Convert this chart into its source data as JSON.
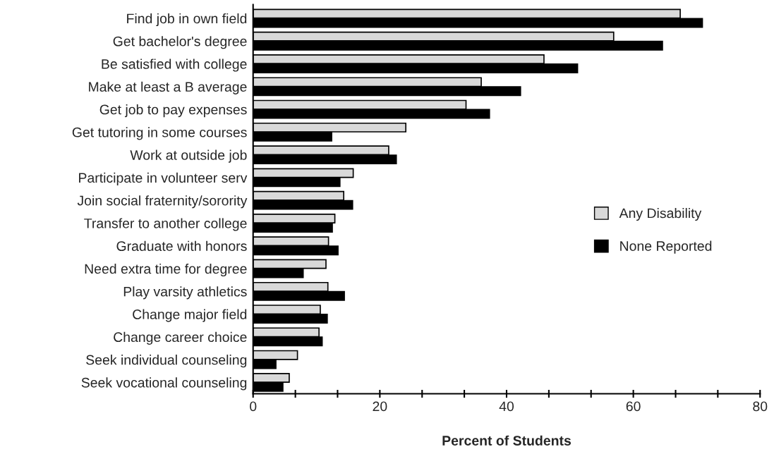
{
  "chart_data": {
    "type": "bar",
    "orientation": "horizontal",
    "xlabel": "Percent of Students",
    "categories": [
      "Find job in own field",
      "Get bachelor's degree",
      "Be satisfied with college",
      "Make at least a B average",
      "Get job to pay expenses",
      "Get tutoring in some courses",
      "Work at outside job",
      "Participate in volunteer serv",
      "Join social fraternity/sorority",
      "Transfer to another college",
      "Graduate with honors",
      "Need extra time for degree",
      "Play varsity athletics",
      "Change major field",
      "Change career choice",
      "Seek individual counseling",
      "Seek vocational counseling"
    ],
    "series": [
      {
        "name": "Any Disability",
        "color": "#d9d9d9",
        "values": [
          67.4,
          56.9,
          45.9,
          36.0,
          33.6,
          24.1,
          21.4,
          15.8,
          14.3,
          12.9,
          11.9,
          11.5,
          11.8,
          10.6,
          10.4,
          7.0,
          5.7
        ]
      },
      {
        "name": "None Reported",
        "color": "#000000",
        "values": [
          70.9,
          64.6,
          51.2,
          42.2,
          37.3,
          12.4,
          22.6,
          13.7,
          15.7,
          12.5,
          13.4,
          7.9,
          14.4,
          11.7,
          10.9,
          3.6,
          4.7
        ]
      }
    ],
    "xlim": [
      0,
      80
    ],
    "xticks": [
      0,
      {
        "value": 6.67,
        "label": null
      },
      {
        "value": 13.33,
        "label": null
      },
      20,
      {
        "value": 26.67,
        "label": null
      },
      {
        "value": 33.33,
        "label": null
      },
      40,
      {
        "value": 46.67,
        "label": null
      },
      {
        "value": 53.33,
        "label": null
      },
      60,
      {
        "value": 66.67,
        "label": null
      },
      {
        "value": 73.33,
        "label": null
      },
      80
    ],
    "legend": "right",
    "grid": false
  }
}
